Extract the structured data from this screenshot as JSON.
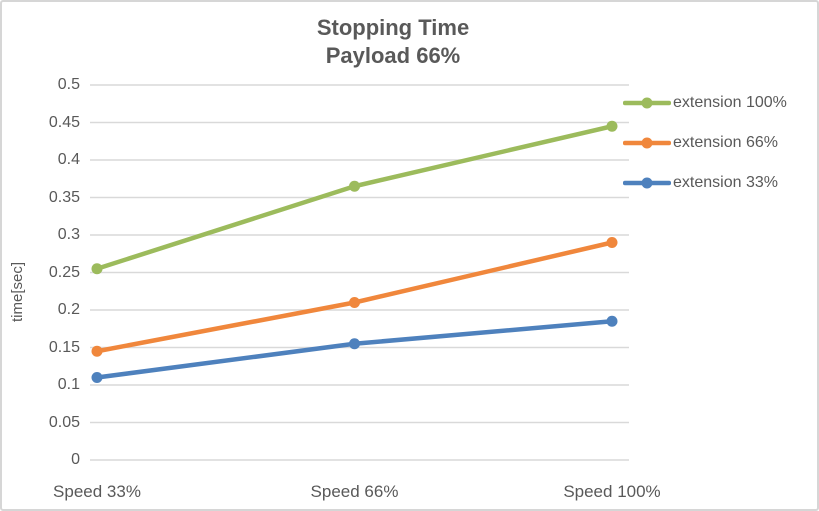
{
  "window": {
    "background": "#ffffff",
    "border_color": "#d6d6d6",
    "text_color": "#595959",
    "gridline_color": "#d9d9d9"
  },
  "chart_data": {
    "type": "line",
    "title": "Stopping Time",
    "subtitle": "Payload 66%",
    "xlabel": "",
    "ylabel": "time[sec]",
    "categories": [
      "Speed 33%",
      "Speed 66%",
      "Speed 100%"
    ],
    "series": [
      {
        "name": "extension 100%",
        "color": "#9cbb5c",
        "values": [
          0.255,
          0.365,
          0.445
        ]
      },
      {
        "name": "extension 66%",
        "color": "#f0873c",
        "values": [
          0.145,
          0.21,
          0.29
        ]
      },
      {
        "name": "extension 33%",
        "color": "#4e81bd",
        "values": [
          0.11,
          0.155,
          0.185
        ]
      }
    ],
    "ylim": [
      0,
      0.5
    ],
    "yticks": [
      "0",
      "0.05",
      "0.1",
      "0.15",
      "0.2",
      "0.25",
      "0.3",
      "0.35",
      "0.4",
      "0.45",
      "0.5"
    ],
    "grid": "horizontal",
    "legend_position": "right",
    "marker": "circle"
  }
}
